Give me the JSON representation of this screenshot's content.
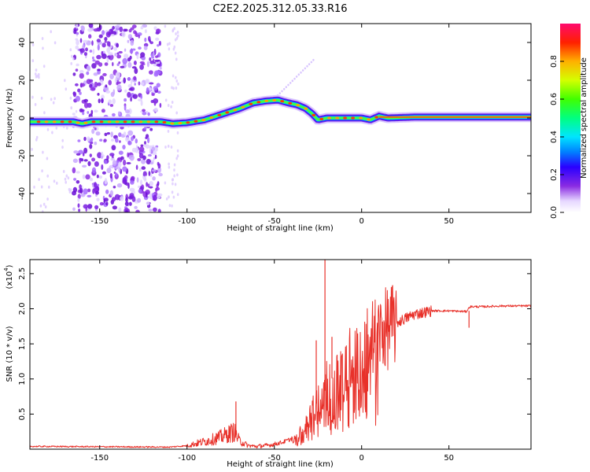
{
  "title": "C2E2.2025.312.05.33.R16",
  "chart_data": [
    {
      "type": "heatmap",
      "xlabel": "Height of straight line (km)",
      "ylabel": "Frequency (Hz)",
      "xlim": [
        -190,
        97
      ],
      "ylim": [
        -50,
        50
      ],
      "xticks": [
        -150,
        -100,
        -50,
        0,
        50
      ],
      "xtick_labels": [
        "-150",
        "-100",
        "-50",
        "0",
        "50"
      ],
      "yticks": [
        -40,
        -20,
        0,
        20,
        40
      ],
      "ytick_labels": [
        "-40",
        "-20",
        "0",
        "20",
        "40"
      ],
      "colorbar": {
        "label": "Normalized spectral amplitude",
        "range": [
          0,
          1
        ],
        "ticks": [
          0.0,
          0.2,
          0.4,
          0.6,
          0.8
        ],
        "tick_labels": [
          "0.0",
          "0.2",
          "0.4",
          "0.6",
          "0.8"
        ]
      },
      "ridge": {
        "x": [
          -190,
          -175,
          -165,
          -160,
          -155,
          -130,
          -115,
          -108,
          -100,
          -90,
          -80,
          -70,
          -62,
          -55,
          -48,
          -42,
          -37,
          -32,
          -28,
          -25,
          -20,
          -15,
          -10,
          -5,
          0,
          5,
          10,
          15,
          30,
          60,
          97
        ],
        "frequency": [
          -2,
          -2,
          -2,
          -3,
          -2,
          -2,
          -2,
          -3,
          -2.5,
          -1,
          2,
          5,
          8,
          9,
          9.5,
          8,
          7,
          5,
          2,
          -1,
          0,
          0,
          0,
          0,
          0,
          -1,
          1,
          0,
          0.5,
          0.5,
          0.5
        ]
      },
      "scatter_band": {
        "x_range": [
          -165,
          -115
        ],
        "frequency_range": [
          -50,
          50
        ]
      }
    },
    {
      "type": "line",
      "xlabel": "Height of straight line (km)",
      "ylabel": "SNR (10 * v/v)",
      "y_multiplier": "(x10",
      "y_multiplier_exp": "4",
      "y_multiplier_close": ")",
      "xlim": [
        -190,
        97
      ],
      "ylim": [
        0,
        2.7
      ],
      "xticks": [
        -150,
        -100,
        -50,
        0,
        50
      ],
      "xtick_labels": [
        "-150",
        "-100",
        "-50",
        "0",
        "50"
      ],
      "yticks": [
        0.5,
        1.0,
        1.5,
        2.0,
        2.5
      ],
      "ytick_labels": [
        "0.5",
        "1.0",
        "1.5",
        "2.0",
        "2.5"
      ],
      "color": "#e8312a",
      "trend": {
        "x": [
          -190,
          -110,
          -100,
          -95,
          -88,
          -80,
          -73,
          -70,
          -65,
          -60,
          -52,
          -45,
          -40,
          -35,
          -30,
          -25,
          -20,
          -15,
          -10,
          -5,
          0,
          10,
          20,
          30,
          40,
          50,
          60,
          62,
          70,
          80,
          97
        ],
        "snr": [
          0.04,
          0.03,
          0.05,
          0.08,
          0.12,
          0.18,
          0.25,
          0.12,
          0.05,
          0.04,
          0.06,
          0.1,
          0.15,
          0.25,
          0.45,
          0.7,
          0.95,
          1.05,
          1.2,
          1.35,
          1.45,
          1.65,
          1.8,
          1.92,
          1.97,
          1.97,
          1.96,
          2.03,
          2.03,
          2.04,
          2.04
        ]
      },
      "spikes": [
        {
          "x": -72,
          "snr": 0.68
        },
        {
          "x": -21,
          "snr": 2.7
        },
        {
          "x": -26,
          "snr": 1.55
        },
        {
          "x": -17,
          "snr": 1.6
        }
      ]
    }
  ]
}
